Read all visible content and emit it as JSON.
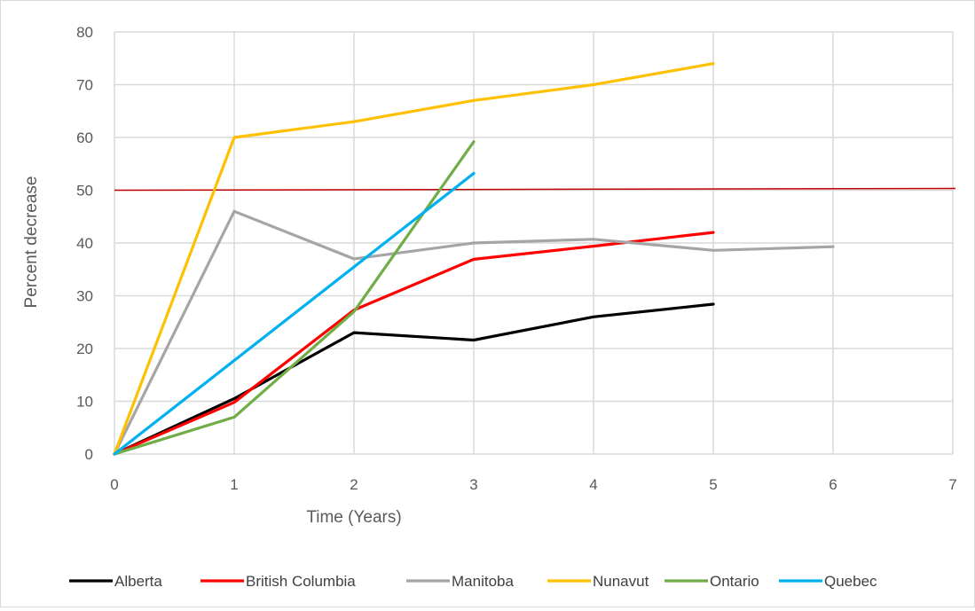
{
  "chart_data": {
    "type": "line",
    "title": "",
    "xlabel": "Time (Years)",
    "ylabel": "Percent decrease",
    "xlim": [
      0,
      7
    ],
    "ylim": [
      0,
      80
    ],
    "x_ticks": [
      "0",
      "1",
      "2",
      "3",
      "4",
      "5",
      "6",
      "7"
    ],
    "y_ticks": [
      "0",
      "10",
      "20",
      "30",
      "40",
      "50",
      "60",
      "70",
      "80"
    ],
    "grid": true,
    "legend_position": "bottom",
    "reference_line": {
      "y": 50,
      "color": "#c00000"
    },
    "series": [
      {
        "name": "Alberta",
        "color": "#000000",
        "x": [
          0,
          1,
          2,
          3,
          4,
          5
        ],
        "y": [
          0,
          10.5,
          23,
          21.6,
          26,
          28.4
        ]
      },
      {
        "name": "British Columbia",
        "color": "#ff0000",
        "x": [
          0,
          1,
          2,
          3,
          4,
          5
        ],
        "y": [
          0,
          9.8,
          27.3,
          36.9,
          39.4,
          42
        ]
      },
      {
        "name": "Manitoba",
        "color": "#a5a5a5",
        "x": [
          0,
          1,
          2,
          3,
          4,
          5,
          6
        ],
        "y": [
          0,
          46,
          37,
          40,
          40.7,
          38.6,
          39.3
        ]
      },
      {
        "name": "Nunavut",
        "color": "#ffc000",
        "x": [
          0,
          1,
          2,
          3,
          4,
          5
        ],
        "y": [
          0,
          60,
          63,
          67,
          70,
          74
        ]
      },
      {
        "name": "Ontario",
        "color": "#70ad47",
        "x": [
          0,
          1,
          2,
          3
        ],
        "y": [
          0,
          7,
          27,
          59.2
        ]
      },
      {
        "name": "Quebec",
        "color": "#00b0f0",
        "x": [
          0,
          3
        ],
        "y": [
          0,
          53.2
        ]
      }
    ]
  }
}
